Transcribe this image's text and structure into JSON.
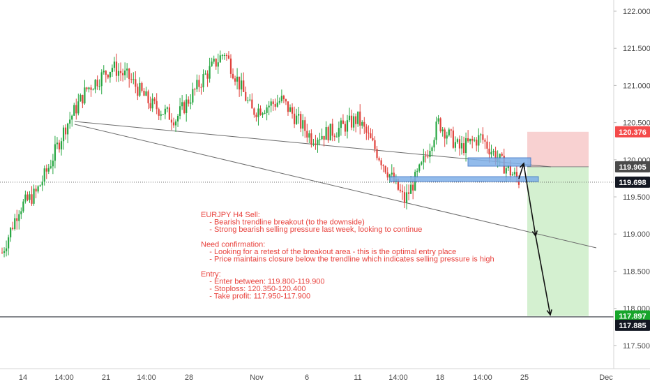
{
  "chart_data": {
    "type": "candlestick",
    "title": "EURJPY H4",
    "ylim": [
      117.3,
      122.2
    ],
    "y_ticks": [
      "122.000",
      "121.500",
      "121.000",
      "120.500",
      "120.000",
      "119.500",
      "119.000",
      "118.500",
      "118.000",
      "117.500"
    ],
    "x_ticks": [
      "14",
      "14:00",
      "21",
      "14:00",
      "28",
      "Nov",
      "6",
      "11",
      "14:00",
      "18",
      "14:00",
      "25",
      "Dec"
    ],
    "price_tags": [
      {
        "label": "120.376",
        "value": 120.376,
        "color": "#f44a4a"
      },
      {
        "label": "119.905",
        "value": 119.905,
        "color": "#4a4a4a"
      },
      {
        "label": "119.698",
        "value": 119.698,
        "color": "#131722"
      },
      {
        "label": "117.897",
        "value": 117.897,
        "color": "#17a52a"
      },
      {
        "label": "117.885",
        "value": 117.885,
        "color": "#131722"
      }
    ],
    "trade": {
      "direction": "short",
      "entry": 119.905,
      "stop_loss": 120.376,
      "take_profit": 117.897
    },
    "bull_color": "#26a641",
    "bear_color": "#e0413b",
    "series_anchors": [
      {
        "x": 0,
        "y": 118.75
      },
      {
        "x": 8,
        "y": 119.35
      },
      {
        "x": 16,
        "y": 119.55
      },
      {
        "x": 22,
        "y": 119.9
      },
      {
        "x": 30,
        "y": 120.45
      },
      {
        "x": 40,
        "y": 120.95
      },
      {
        "x": 52,
        "y": 121.25
      },
      {
        "x": 60,
        "y": 121.1
      },
      {
        "x": 70,
        "y": 120.75
      },
      {
        "x": 82,
        "y": 120.55
      },
      {
        "x": 95,
        "y": 121.1
      },
      {
        "x": 105,
        "y": 121.45
      },
      {
        "x": 118,
        "y": 120.65
      },
      {
        "x": 132,
        "y": 120.8
      },
      {
        "x": 146,
        "y": 120.3
      },
      {
        "x": 158,
        "y": 120.4
      },
      {
        "x": 168,
        "y": 120.55
      },
      {
        "x": 180,
        "y": 119.95
      },
      {
        "x": 190,
        "y": 119.45
      },
      {
        "x": 198,
        "y": 119.9
      },
      {
        "x": 206,
        "y": 120.5
      },
      {
        "x": 216,
        "y": 120.15
      },
      {
        "x": 226,
        "y": 120.3
      },
      {
        "x": 236,
        "y": 119.95
      },
      {
        "x": 244,
        "y": 119.72
      }
    ],
    "annotation": {
      "lines": [
        "EURJPY H4 Sell:",
        "    - Bearish trendline breakout (to the downside)",
        "    - Strong bearish selling pressure last week, looking to continue",
        "",
        "Need confirmation:",
        "    - Looking for a retest of the breakout area - this is the optimal entry place",
        "    - Price maintains closure below the trendline which indicates selling pressure is high",
        "",
        "Entry:",
        "    - Enter between: 119.800-119.900",
        "    - Stoploss: 120.350-120.400",
        "    - Take profit: 117.950-117.900"
      ]
    },
    "grid": false
  }
}
